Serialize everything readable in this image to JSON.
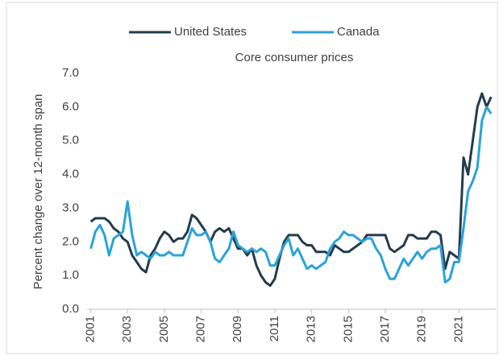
{
  "chart_data": {
    "type": "line",
    "title": "Core consumer prices",
    "y_label": "Percent change over 12-month span",
    "legend": "top",
    "x": [
      2001,
      2001.25,
      2001.5,
      2001.75,
      2002,
      2002.25,
      2002.5,
      2002.75,
      2003,
      2003.25,
      2003.5,
      2003.75,
      2004,
      2004.25,
      2004.5,
      2004.75,
      2005,
      2005.25,
      2005.5,
      2005.75,
      2006,
      2006.25,
      2006.5,
      2006.75,
      2007,
      2007.25,
      2007.5,
      2007.75,
      2008,
      2008.25,
      2008.5,
      2008.75,
      2009,
      2009.25,
      2009.5,
      2009.75,
      2010,
      2010.25,
      2010.5,
      2010.75,
      2011,
      2011.25,
      2011.5,
      2011.75,
      2012,
      2012.25,
      2012.5,
      2012.75,
      2013,
      2013.25,
      2013.5,
      2013.75,
      2014,
      2014.25,
      2014.5,
      2014.75,
      2015,
      2015.25,
      2015.5,
      2015.75,
      2016,
      2016.25,
      2016.5,
      2016.75,
      2017,
      2017.25,
      2017.5,
      2017.75,
      2018,
      2018.25,
      2018.5,
      2018.75,
      2019,
      2019.25,
      2019.5,
      2019.75,
      2020,
      2020.25,
      2020.5,
      2020.75,
      2021,
      2021.25,
      2021.5,
      2021.75,
      2022,
      2022.25,
      2022.5,
      2022.75
    ],
    "series": [
      {
        "name": "United States",
        "color": "#243c4c",
        "values": [
          2.6,
          2.7,
          2.7,
          2.7,
          2.6,
          2.4,
          2.3,
          2.1,
          2.0,
          1.6,
          1.4,
          1.2,
          1.1,
          1.6,
          1.8,
          2.1,
          2.3,
          2.2,
          2.0,
          2.1,
          2.1,
          2.3,
          2.8,
          2.7,
          2.5,
          2.3,
          2.0,
          2.3,
          2.4,
          2.3,
          2.4,
          2.1,
          1.8,
          1.8,
          1.6,
          1.8,
          1.3,
          1.0,
          0.8,
          0.7,
          0.9,
          1.5,
          2.0,
          2.2,
          2.2,
          2.2,
          2.0,
          1.9,
          1.9,
          1.7,
          1.7,
          1.7,
          1.6,
          1.9,
          1.8,
          1.7,
          1.7,
          1.8,
          1.9,
          2.0,
          2.2,
          2.2,
          2.2,
          2.2,
          2.2,
          1.8,
          1.7,
          1.8,
          1.9,
          2.2,
          2.2,
          2.1,
          2.1,
          2.1,
          2.3,
          2.3,
          2.2,
          1.2,
          1.7,
          1.6,
          1.5,
          4.5,
          4.0,
          5.0,
          6.0,
          6.4,
          6.0,
          6.3
        ]
      },
      {
        "name": "Canada",
        "color": "#2aa3d8",
        "values": [
          1.8,
          2.3,
          2.5,
          2.2,
          1.6,
          2.1,
          2.2,
          2.3,
          3.2,
          2.2,
          1.6,
          1.7,
          1.6,
          1.5,
          1.7,
          1.6,
          1.6,
          1.7,
          1.6,
          1.6,
          1.6,
          2.0,
          2.4,
          2.2,
          2.2,
          2.3,
          2.0,
          1.5,
          1.4,
          1.6,
          1.8,
          2.3,
          1.9,
          1.8,
          1.7,
          1.8,
          1.7,
          1.8,
          1.7,
          1.3,
          1.3,
          1.6,
          1.9,
          2.1,
          1.6,
          1.8,
          1.5,
          1.2,
          1.3,
          1.2,
          1.3,
          1.4,
          1.8,
          2.0,
          2.1,
          2.3,
          2.2,
          2.2,
          2.1,
          2.0,
          2.1,
          2.1,
          1.8,
          1.6,
          1.2,
          0.9,
          0.9,
          1.2,
          1.5,
          1.3,
          1.5,
          1.7,
          1.5,
          1.7,
          1.8,
          1.8,
          1.9,
          0.8,
          0.9,
          1.4,
          1.4,
          2.4,
          3.5,
          3.8,
          4.2,
          5.6,
          6.0,
          5.8
        ]
      }
    ],
    "xlim": [
      2000.8,
      2023
    ],
    "xticks": [
      2001,
      2003,
      2005,
      2007,
      2009,
      2011,
      2013,
      2015,
      2017,
      2019,
      2021
    ],
    "ylim": [
      0,
      7
    ],
    "yticks": [
      {
        "value": 0,
        "label": "0.0"
      },
      {
        "value": 1,
        "label": "1.0"
      },
      {
        "value": 2,
        "label": "2.0"
      },
      {
        "value": 3,
        "label": "3.0"
      },
      {
        "value": 4,
        "label": "4.0"
      },
      {
        "value": 5,
        "label": "5.0"
      },
      {
        "value": 6,
        "label": "6.0"
      },
      {
        "value": 7,
        "label": "7.0"
      }
    ],
    "grid": false
  }
}
